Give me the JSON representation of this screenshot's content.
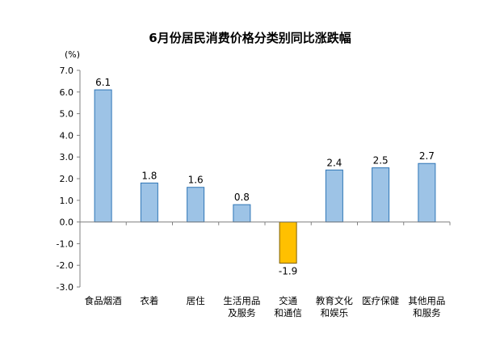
{
  "chart_data": {
    "type": "bar",
    "title": "6月份居民消费价格分类别同比涨跌幅",
    "unit": "(%)",
    "categories": [
      [
        "食品烟酒"
      ],
      [
        "衣着"
      ],
      [
        "居住"
      ],
      [
        "生活用品",
        "及服务"
      ],
      [
        "交通",
        "和通信"
      ],
      [
        "教育文化",
        "和娱乐"
      ],
      [
        "医疗保健"
      ],
      [
        "其他用品",
        "和服务"
      ]
    ],
    "values": [
      6.1,
      1.8,
      1.6,
      0.8,
      -1.9,
      2.4,
      2.5,
      2.7
    ],
    "data_labels": [
      "6.1",
      "1.8",
      "1.6",
      "0.8",
      "-1.9",
      "2.4",
      "2.5",
      "2.7"
    ],
    "ylim": [
      -3.0,
      7.0
    ],
    "yticks": [
      "7.0",
      "6.0",
      "5.0",
      "4.0",
      "3.0",
      "2.0",
      "1.0",
      "0.0",
      "-1.0",
      "-2.0",
      "-3.0"
    ],
    "grid": false,
    "colors": {
      "positive_fill": "#9DC3E6",
      "positive_stroke": "#2E75B6",
      "negative_fill": "#FFC000",
      "negative_stroke": "#7F6000",
      "axis": "#808080"
    }
  }
}
